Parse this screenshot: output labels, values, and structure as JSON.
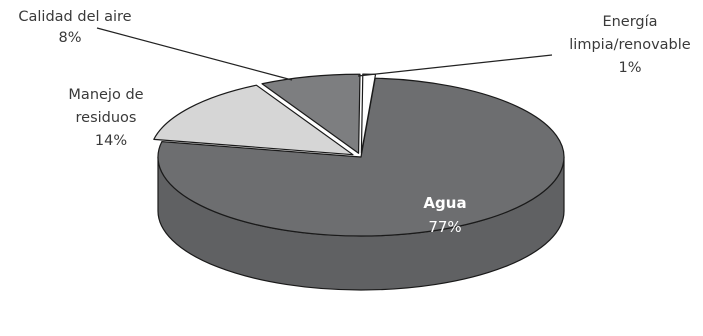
{
  "chart_data": {
    "type": "pie",
    "title": "",
    "three_d": true,
    "legend": "none",
    "slices": [
      {
        "label": "Agua",
        "percent_label": "77%",
        "value": 77,
        "color": "#6d6e70",
        "exploded": false
      },
      {
        "label": "Manejo de residuos",
        "label_lines": [
          "Manejo de",
          "residuos"
        ],
        "percent_label": "14%",
        "value": 14,
        "color": "#d6d6d6",
        "exploded": true
      },
      {
        "label": "Calidad del aire",
        "label_lines": [
          "Calidad del aire"
        ],
        "percent_label": "8%",
        "value": 8,
        "color": "#7d7e80",
        "exploded": true
      },
      {
        "label": "Energía limpia/renovable",
        "label_lines": [
          "Energía",
          "limpia/renovable"
        ],
        "percent_label": "1%",
        "value": 1,
        "color": "#ffffff",
        "exploded": true
      }
    ]
  }
}
